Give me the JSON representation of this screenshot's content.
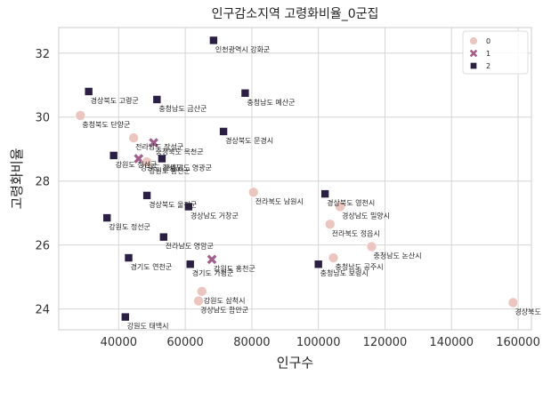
{
  "chart_data": {
    "type": "scatter",
    "title": "인구감소지역 고령화비율_0군집",
    "xlabel": "인구수",
    "ylabel": "고령화비율",
    "xlim": [
      22000,
      164000
    ],
    "ylim": [
      23.35,
      32.8
    ],
    "xticks": [
      40000,
      60000,
      80000,
      100000,
      120000,
      140000,
      160000
    ],
    "xtick_labels": [
      "40000",
      "60000",
      "80000",
      "100000",
      "120000",
      "140000",
      "160000"
    ],
    "yticks": [
      24,
      26,
      28,
      30,
      32
    ],
    "ytick_labels": [
      "24",
      "26",
      "28",
      "30",
      "32"
    ],
    "grid": true,
    "legend_position": "top-right",
    "series": [
      {
        "name": "0",
        "marker": "circle",
        "color": "#ebc6c0"
      },
      {
        "name": "1",
        "marker": "x",
        "color": "#a35d8a"
      },
      {
        "name": "2",
        "marker": "square",
        "color": "#2b1f44"
      }
    ],
    "points": [
      {
        "x": 68500,
        "y": 32.4,
        "series": "2",
        "label": "인천광역시 강화군"
      },
      {
        "x": 31000,
        "y": 30.8,
        "series": "2",
        "label": "경상북도 고령군"
      },
      {
        "x": 51500,
        "y": 30.55,
        "series": "2",
        "label": "충청남도 금산군"
      },
      {
        "x": 78000,
        "y": 30.75,
        "series": "2",
        "label": "충청남도 예산군"
      },
      {
        "x": 28500,
        "y": 30.05,
        "series": "0",
        "label": "충청북도 단양군"
      },
      {
        "x": 71500,
        "y": 29.55,
        "series": "2",
        "label": "경상북도 문경시"
      },
      {
        "x": 44500,
        "y": 29.35,
        "series": "0",
        "label": "전라남도 장성군"
      },
      {
        "x": 50500,
        "y": 29.2,
        "series": "1",
        "label": "충청북도 옥천군"
      },
      {
        "x": 38500,
        "y": 28.8,
        "series": "2",
        "label": "강원도 정선군"
      },
      {
        "x": 46000,
        "y": 28.7,
        "series": "1",
        "label": "강원도 횡성군"
      },
      {
        "x": 53000,
        "y": 28.7,
        "series": "2",
        "label": "전라남도 영광군"
      },
      {
        "x": 48500,
        "y": 28.6,
        "series": "0",
        "label": "강원도 홍천군"
      },
      {
        "x": 80500,
        "y": 27.65,
        "series": "0",
        "label": "전라북도 남원시"
      },
      {
        "x": 102000,
        "y": 27.6,
        "series": "2",
        "label": "경상북도 영천시"
      },
      {
        "x": 48500,
        "y": 27.55,
        "series": "2",
        "label": "경상북도 울진군"
      },
      {
        "x": 106500,
        "y": 27.2,
        "series": "0",
        "label": "경상남도 밀양시"
      },
      {
        "x": 61000,
        "y": 27.2,
        "series": "2",
        "label": "경상남도 거창군"
      },
      {
        "x": 36500,
        "y": 26.85,
        "series": "2",
        "label": "강원도 정선군"
      },
      {
        "x": 103500,
        "y": 26.65,
        "series": "0",
        "label": "전라북도 정읍시"
      },
      {
        "x": 53500,
        "y": 26.25,
        "series": "2",
        "label": "전라남도 영암군"
      },
      {
        "x": 116000,
        "y": 25.95,
        "series": "0",
        "label": "충청남도 논산시"
      },
      {
        "x": 43000,
        "y": 25.6,
        "series": "2",
        "label": "경기도 연천군"
      },
      {
        "x": 104500,
        "y": 25.6,
        "series": "0",
        "label": "충청남도 공주시"
      },
      {
        "x": 61500,
        "y": 25.4,
        "series": "2",
        "label": "경기도 가평군"
      },
      {
        "x": 68000,
        "y": 25.55,
        "series": "1",
        "label": "강원도 홍천군"
      },
      {
        "x": 100000,
        "y": 25.4,
        "series": "2",
        "label": "충청남도 보령시"
      },
      {
        "x": 65000,
        "y": 24.55,
        "series": "0",
        "label": "강원도 삼척시"
      },
      {
        "x": 64000,
        "y": 24.25,
        "series": "0",
        "label": "경상남도 함안군"
      },
      {
        "x": 158500,
        "y": 24.2,
        "series": "0",
        "label": "경상북도 안동시"
      },
      {
        "x": 42000,
        "y": 23.75,
        "series": "2",
        "label": "강원도 태백시"
      }
    ]
  }
}
